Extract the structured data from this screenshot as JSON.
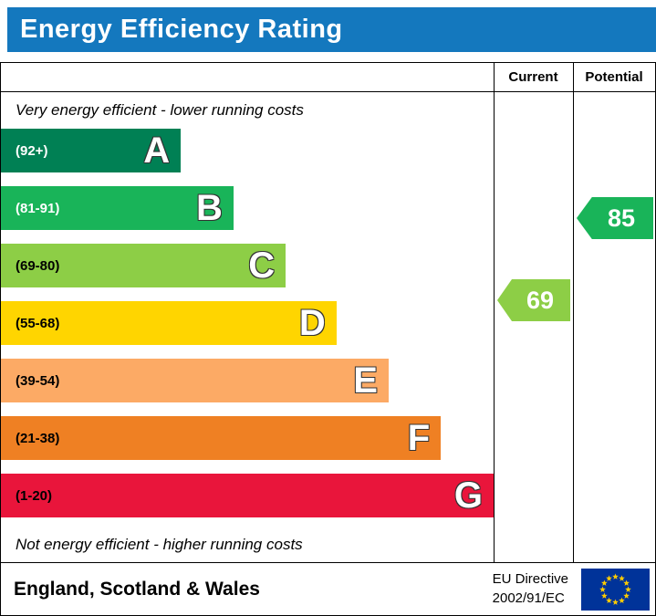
{
  "title": "Energy Efficiency Rating",
  "colors": {
    "banner": "#1478be",
    "border": "#000000"
  },
  "columns": {
    "current": "Current",
    "potential": "Potential"
  },
  "notes": {
    "top": "Very energy efficient - lower running costs",
    "bottom": "Not energy efficient - higher running costs"
  },
  "bands": [
    {
      "letter": "A",
      "range": "(92+)",
      "color": "#008054",
      "range_text_color": "#ffffff",
      "width_pct": 36.5
    },
    {
      "letter": "B",
      "range": "(81-91)",
      "color": "#19b459",
      "range_text_color": "#ffffff",
      "width_pct": 47.2
    },
    {
      "letter": "C",
      "range": "(69-80)",
      "color": "#8dce46",
      "range_text_color": "#000000",
      "width_pct": 57.8
    },
    {
      "letter": "D",
      "range": "(55-68)",
      "color": "#ffd500",
      "range_text_color": "#000000",
      "width_pct": 68.1
    },
    {
      "letter": "E",
      "range": "(39-54)",
      "color": "#fcaa65",
      "range_text_color": "#000000",
      "width_pct": 78.7
    },
    {
      "letter": "F",
      "range": "(21-38)",
      "color": "#ef8023",
      "range_text_color": "#000000",
      "width_pct": 89.3
    },
    {
      "letter": "G",
      "range": "(1-20)",
      "color": "#e9153b",
      "range_text_color": "#000000",
      "width_pct": 100
    }
  ],
  "current": {
    "value": "69",
    "band": "C",
    "color": "#8dce46"
  },
  "potential": {
    "value": "85",
    "band": "B",
    "color": "#19b459"
  },
  "footer": {
    "region": "England, Scotland & Wales",
    "directive_line1": "EU Directive",
    "directive_line2": "2002/91/EC"
  },
  "chart_data": {
    "type": "bar",
    "title": "Energy Efficiency Rating",
    "categories": [
      "A",
      "B",
      "C",
      "D",
      "E",
      "F",
      "G"
    ],
    "band_ranges": [
      "92+",
      "81-91",
      "69-80",
      "55-68",
      "39-54",
      "21-38",
      "1-20"
    ],
    "band_colors": [
      "#008054",
      "#19b459",
      "#8dce46",
      "#ffd500",
      "#fcaa65",
      "#ef8023",
      "#e9153b"
    ],
    "values": [
      36.5,
      47.2,
      57.8,
      68.1,
      78.7,
      89.3,
      100
    ],
    "markers": [
      {
        "name": "Current",
        "value": 69,
        "band": "C"
      },
      {
        "name": "Potential",
        "value": 85,
        "band": "B"
      }
    ],
    "notes": [
      "Very energy efficient - lower running costs",
      "Not energy efficient - higher running costs"
    ],
    "region": "England, Scotland & Wales",
    "directive": "EU Directive 2002/91/EC"
  }
}
